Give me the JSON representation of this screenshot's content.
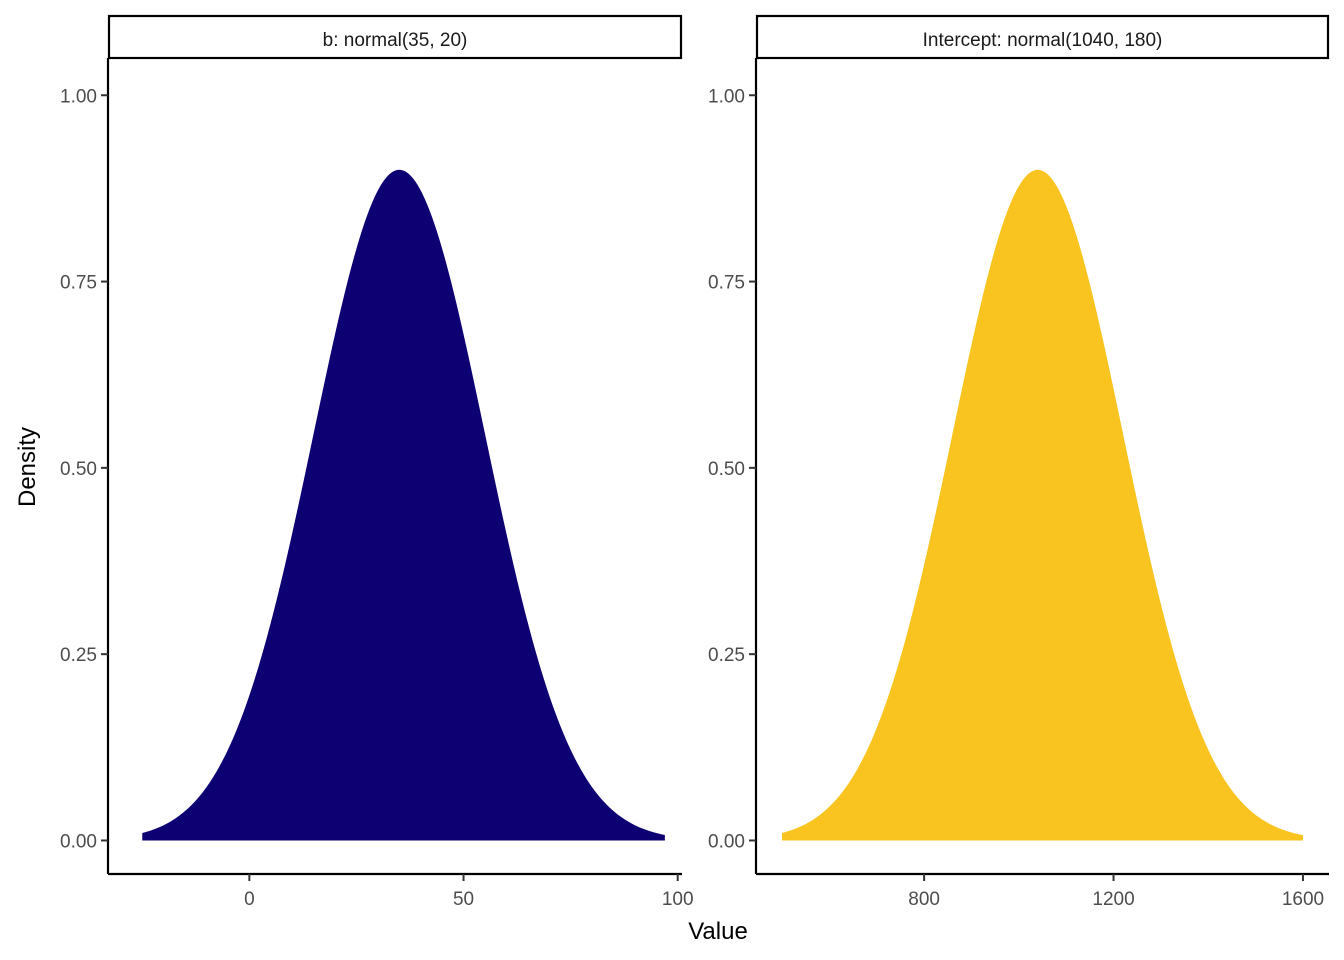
{
  "chart_data": {
    "type": "area",
    "xlabel": "Value",
    "ylabel": "Density",
    "grid": false,
    "legend": "none",
    "panels": [
      {
        "strip_label": "b: normal(35, 20)",
        "distribution": {
          "family": "normal",
          "mean": 35,
          "sd": 20
        },
        "x_range": [
          -25,
          97
        ],
        "xlim": [
          -33,
          101
        ],
        "ylim": [
          -0.045,
          1.05
        ],
        "peak_density": 0.9,
        "x_ticks": [
          0,
          50,
          100
        ],
        "x_tick_labels": [
          "0",
          "50",
          "100"
        ],
        "y_ticks": [
          0,
          0.25,
          0.5,
          0.75,
          1.0
        ],
        "y_tick_labels": [
          "0.00",
          "0.25",
          "0.50",
          "0.75",
          "1.00"
        ],
        "color": "#0d0072"
      },
      {
        "strip_label": "Intercept: normal(1040, 180)",
        "distribution": {
          "family": "normal",
          "mean": 1040,
          "sd": 180
        },
        "x_range": [
          500,
          1600
        ],
        "xlim": [
          445,
          1655
        ],
        "ylim": [
          -0.045,
          1.05
        ],
        "peak_density": 0.9,
        "x_ticks": [
          800,
          1200,
          1600
        ],
        "x_tick_labels": [
          "800",
          "1200",
          "1600"
        ],
        "y_ticks": [
          0,
          0.25,
          0.5,
          0.75,
          1.0
        ],
        "y_tick_labels": [
          "0.00",
          "0.25",
          "0.50",
          "0.75",
          "1.00"
        ],
        "color": "#f9c420"
      }
    ]
  }
}
